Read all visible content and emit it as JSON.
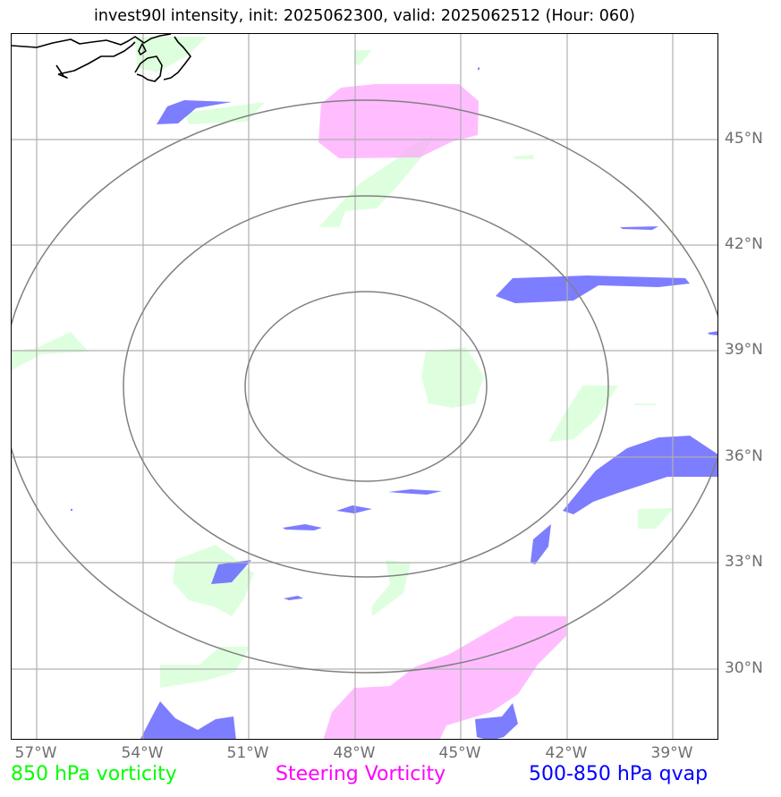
{
  "title": "invest90l intensity, init: 2025062300, valid: 2025062512 (Hour: 060)",
  "map": {
    "lat_labels": [
      {
        "value": 45,
        "text": "45°N"
      },
      {
        "value": 42,
        "text": "42°N"
      },
      {
        "value": 39,
        "text": "39°N"
      },
      {
        "value": 36,
        "text": "36°N"
      },
      {
        "value": 33,
        "text": "33°N"
      },
      {
        "value": 30,
        "text": "30°N"
      }
    ],
    "lon_labels": [
      {
        "value": -57,
        "text": "57°W"
      },
      {
        "value": -54,
        "text": "54°W"
      },
      {
        "value": -51,
        "text": "51°W"
      },
      {
        "value": -48,
        "text": "48°W"
      },
      {
        "value": -45,
        "text": "45°W"
      },
      {
        "value": -42,
        "text": "42°W"
      },
      {
        "value": -39,
        "text": "39°W"
      }
    ],
    "grid": true,
    "range_rings": 3,
    "colors": {
      "vorticity_850": "#ccffcc",
      "steering_vorticity": "#ff99ff",
      "qvap_500_850": "#6666ff",
      "grid": "#b0b0b0",
      "ring": "#808080",
      "coastline": "#000000",
      "axis_label": "#6e6e6e"
    }
  },
  "legend": {
    "vorticity_850": "850 hPa vorticity",
    "steering_vorticity": "Steering Vorticity",
    "qvap": "500-850 hPa qvap"
  },
  "legend_colors": {
    "vorticity_850": "#00ff00",
    "steering_vorticity": "#ff00ff",
    "qvap": "#0000ff"
  }
}
